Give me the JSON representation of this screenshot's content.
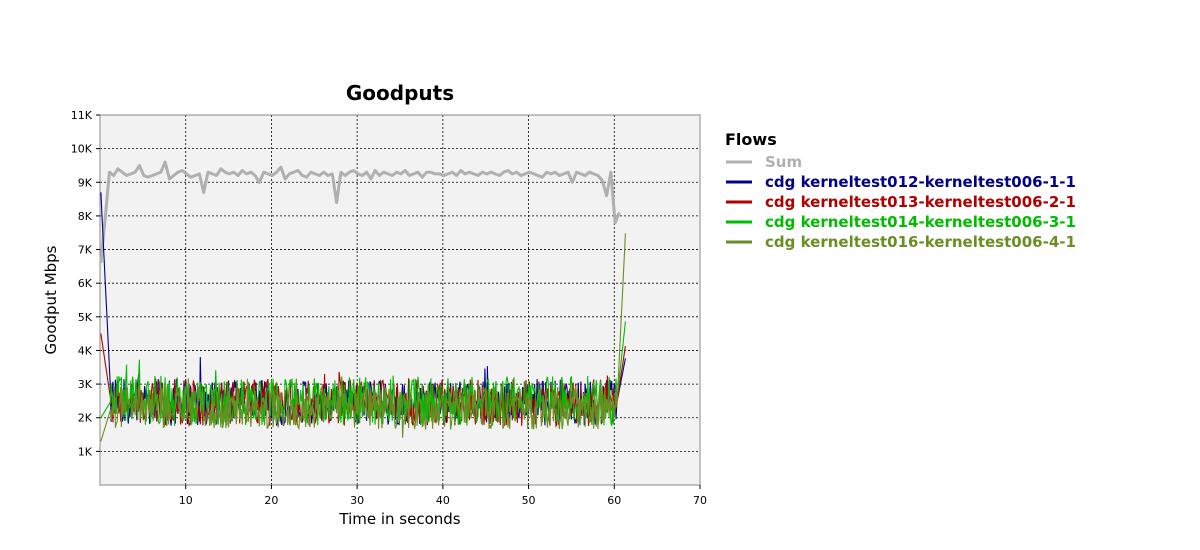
{
  "chart_data": {
    "type": "line",
    "title": "Goodputs",
    "xlabel": "Time in seconds",
    "ylabel": "Goodput Mbps",
    "xlim": [
      0,
      70
    ],
    "ylim": [
      0,
      11000
    ],
    "x_ticks": [
      10,
      20,
      30,
      40,
      50,
      60,
      70
    ],
    "y_ticks": [
      {
        "value": 1000,
        "label": "1K"
      },
      {
        "value": 2000,
        "label": "2K"
      },
      {
        "value": 3000,
        "label": "3K"
      },
      {
        "value": 4000,
        "label": "4K"
      },
      {
        "value": 5000,
        "label": "5K"
      },
      {
        "value": 6000,
        "label": "6K"
      },
      {
        "value": 7000,
        "label": "7K"
      },
      {
        "value": 8000,
        "label": "8K"
      },
      {
        "value": 9000,
        "label": "9K"
      },
      {
        "value": 10000,
        "label": "10K"
      },
      {
        "value": 11000,
        "label": "11K"
      }
    ],
    "grid": true,
    "legend": {
      "title": "Flows",
      "placement": "right"
    },
    "sample_interval": 0.1,
    "series": [
      {
        "name": "Sum",
        "color": "#b0b0b0",
        "interval": 0.5,
        "values": [
          6600,
          7900,
          9300,
          9200,
          9400,
          9300,
          9200,
          9250,
          9300,
          9500,
          9200,
          9150,
          9200,
          9250,
          9300,
          9600,
          9100,
          9200,
          9300,
          9350,
          9250,
          9150,
          9200,
          9250,
          8700,
          9300,
          9250,
          9200,
          9400,
          9300,
          9250,
          9300,
          9200,
          9350,
          9250,
          9300,
          9200,
          9000,
          9300,
          9250,
          9200,
          9300,
          9450,
          9100,
          9250,
          9300,
          9350,
          9200,
          9150,
          9300,
          9250,
          9200,
          9300,
          9200,
          9250,
          8400,
          9300,
          9200,
          9300,
          9350,
          9250,
          9200,
          9300,
          9100,
          9350,
          9200,
          9300,
          9250,
          9200,
          9300,
          9250,
          9350,
          9200,
          9250,
          9300,
          9150,
          9300,
          9300,
          9250,
          9250,
          9200,
          9250,
          9300,
          9200,
          9350,
          9250,
          9300,
          9250,
          9200,
          9300,
          9250,
          9300,
          9250,
          9200,
          9300,
          9350,
          9250,
          9300,
          9200,
          9250,
          9300,
          9250,
          9200,
          9150,
          9300,
          9250,
          9300,
          9200,
          9250,
          9300,
          9000,
          9300,
          9250,
          9200,
          9300,
          9250,
          9200,
          9050,
          8600,
          9300,
          7800,
          8100
        ]
      },
      {
        "name": "cdg kerneltest012-kerneltest006-1-1",
        "color": "#00008b",
        "base": 2450,
        "spread": 700,
        "start": 8700,
        "end": 3900
      },
      {
        "name": "cdg kerneltest013-kerneltest006-2-1",
        "color": "#b00000",
        "base": 2450,
        "spread": 700,
        "start": 4500,
        "end": 4300
      },
      {
        "name": "cdg kerneltest014-kerneltest006-3-1",
        "color": "#00bb00",
        "base": 2500,
        "spread": 750,
        "start": 2000,
        "end": 5100
      },
      {
        "name": "cdg kerneltest016-kerneltest006-4-1",
        "color": "#6b8e23",
        "base": 2300,
        "spread": 650,
        "start": 1300,
        "end": 8000
      }
    ]
  }
}
